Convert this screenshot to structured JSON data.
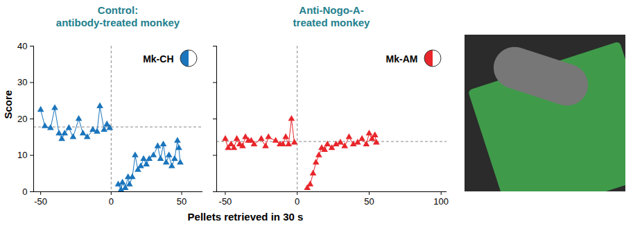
{
  "chart_data": [
    {
      "type": "line",
      "title": "Control:\nantibody-treated monkey",
      "panel_label": "Mk-CH",
      "ylabel": "Score",
      "marker": "triangle",
      "xlim": [
        -55,
        65
      ],
      "xticks": [
        -50,
        0,
        50
      ],
      "ylim": [
        0,
        40
      ],
      "yticks": [
        0,
        10,
        20,
        30,
        40
      ],
      "vline": 0,
      "hline": 17.8,
      "x": [
        -50,
        -47,
        -43,
        -40,
        -37,
        -35,
        -33,
        -30,
        -27,
        -23,
        -20,
        -17,
        -13,
        -10,
        -8,
        -5,
        -3,
        -1,
        0,
        5,
        7,
        8,
        10,
        12,
        13,
        15,
        17,
        19,
        21,
        23,
        25,
        27,
        30,
        33,
        35,
        37,
        39,
        41,
        43,
        45,
        47,
        48,
        49
      ],
      "series": [
        {
          "color": "#1a75bc",
          "values": [
            22.5,
            18,
            17.5,
            23,
            16,
            14.5,
            16,
            17.5,
            15,
            20,
            16,
            15,
            17,
            16.5,
            23.5,
            17,
            18.5,
            17.5,
            null,
            2,
            0.5,
            2.5,
            1,
            4,
            2,
            4,
            10,
            6,
            7,
            9,
            7.5,
            9,
            10,
            12.5,
            9,
            13,
            8,
            10,
            7,
            9,
            14,
            12,
            8
          ]
        }
      ]
    },
    {
      "type": "line",
      "title": "Anti-Nogo-A-\ntreated monkey",
      "panel_label": "Mk-AM",
      "marker": "triangle",
      "tick_labels": "x",
      "xlim": [
        -56,
        104
      ],
      "xticks": [
        -50,
        0,
        50,
        100
      ],
      "ylim": [
        0,
        40
      ],
      "yticks": [
        0,
        10,
        20,
        30,
        40
      ],
      "vline": 0,
      "hline": 13.8,
      "x": [
        -50,
        -48,
        -46,
        -44,
        -42,
        -40,
        -38,
        -36,
        -34,
        -32,
        -30,
        -25,
        -22,
        -20,
        -15,
        -12,
        -10,
        -8,
        -6,
        -4,
        -2,
        0,
        7,
        9,
        11,
        13,
        15,
        17,
        19,
        21,
        24,
        27,
        30,
        33,
        36,
        39,
        42,
        45,
        48,
        50,
        52,
        54,
        55
      ],
      "series": [
        {
          "color": "#e8262b",
          "values": [
            14.5,
            12,
            13,
            12,
            14.5,
            13,
            12.5,
            15,
            14,
            14,
            13,
            14.5,
            12.5,
            15,
            14,
            13,
            13,
            15,
            13,
            20,
            13.5,
            null,
            1,
            2,
            5,
            8,
            10,
            12,
            11.5,
            13,
            12,
            13,
            13.5,
            12.5,
            15,
            13,
            13.5,
            14.5,
            13,
            16,
            14.5,
            15.5,
            13.5
          ]
        }
      ]
    }
  ],
  "xlabel": "Pellets retrieved in 30 s"
}
